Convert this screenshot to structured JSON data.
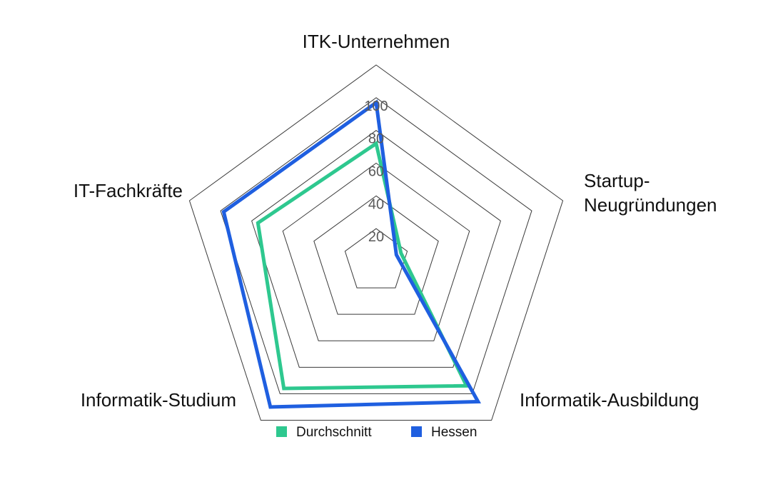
{
  "chart_data": {
    "type": "radar",
    "title": "",
    "categories": [
      {
        "lines": [
          "ITK-Unternehmen"
        ]
      },
      {
        "lines": [
          "Startup-",
          "Neugründungen"
        ]
      },
      {
        "lines": [
          "Informatik-Ausbildung"
        ]
      },
      {
        "lines": [
          "Informatik-Studium"
        ]
      },
      {
        "lines": [
          "IT-Fachkräfte"
        ]
      }
    ],
    "rlim": [
      0,
      120
    ],
    "ticks": [
      20,
      40,
      60,
      80,
      100
    ],
    "tick_labels": [
      "20",
      "40",
      "60",
      "80",
      "100"
    ],
    "grid_rings": [
      20,
      40,
      60,
      80,
      100,
      120
    ],
    "series": [
      {
        "name": "Durchschnitt",
        "color": "#2ec88f",
        "values": [
          72,
          16,
          94,
          96,
          76
        ]
      },
      {
        "name": "Hessen",
        "color": "#1f5fe0",
        "values": [
          97,
          13,
          106,
          110,
          98
        ]
      }
    ],
    "legend_position": "bottom-center",
    "grid": true
  }
}
